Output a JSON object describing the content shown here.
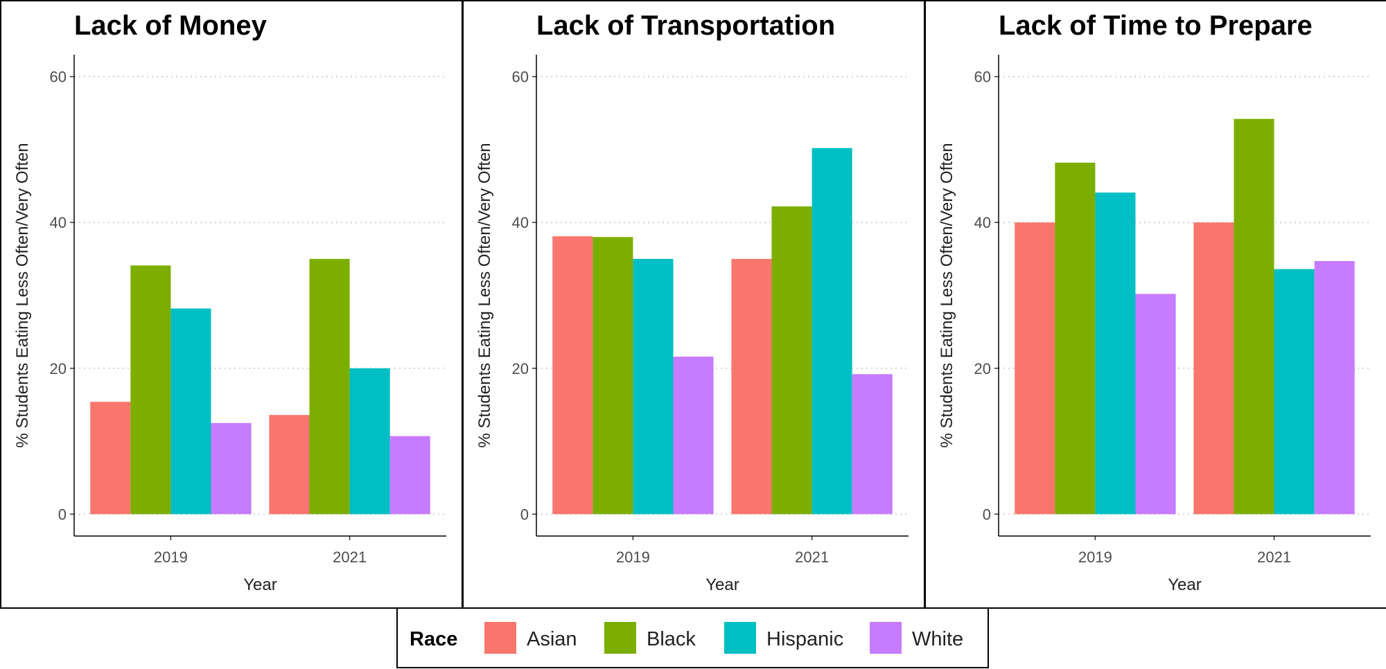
{
  "chart_data": [
    {
      "type": "bar",
      "title": "Lack of Money",
      "x_label": "Year",
      "y_label": "% Students Eating Less Often/Very Often",
      "categories": [
        "2019",
        "2021"
      ],
      "series": [
        {
          "name": "Asian",
          "color": "#F8766D",
          "values": [
            15.4,
            13.6
          ]
        },
        {
          "name": "Black",
          "color": "#7CAE00",
          "values": [
            34.1,
            35.0
          ]
        },
        {
          "name": "Hispanic",
          "color": "#00BFC4",
          "values": [
            28.2,
            20.0
          ]
        },
        {
          "name": "White",
          "color": "#C77CFF",
          "values": [
            12.5,
            10.7
          ]
        }
      ],
      "ylim": [
        -3,
        63
      ],
      "yticks": [
        0,
        20,
        40,
        60
      ],
      "grid": true
    },
    {
      "type": "bar",
      "title": "Lack of Transportation",
      "x_label": "Year",
      "y_label": "% Students Eating Less Often/Very Often",
      "categories": [
        "2019",
        "2021"
      ],
      "series": [
        {
          "name": "Asian",
          "color": "#F8766D",
          "values": [
            38.1,
            35.0
          ]
        },
        {
          "name": "Black",
          "color": "#7CAE00",
          "values": [
            38.0,
            42.2
          ]
        },
        {
          "name": "Hispanic",
          "color": "#00BFC4",
          "values": [
            35.0,
            50.2
          ]
        },
        {
          "name": "White",
          "color": "#C77CFF",
          "values": [
            21.6,
            19.2
          ]
        }
      ],
      "ylim": [
        -3,
        63
      ],
      "yticks": [
        0,
        20,
        40,
        60
      ],
      "grid": true
    },
    {
      "type": "bar",
      "title": "Lack of Time to Prepare",
      "x_label": "Year",
      "y_label": "% Students Eating Less Often/Very Often",
      "categories": [
        "2019",
        "2021"
      ],
      "series": [
        {
          "name": "Asian",
          "color": "#F8766D",
          "values": [
            40.0,
            40.0
          ]
        },
        {
          "name": "Black",
          "color": "#7CAE00",
          "values": [
            48.2,
            54.2
          ]
        },
        {
          "name": "Hispanic",
          "color": "#00BFC4",
          "values": [
            44.1,
            33.6
          ]
        },
        {
          "name": "White",
          "color": "#C77CFF",
          "values": [
            30.2,
            34.7
          ]
        }
      ],
      "ylim": [
        -3,
        63
      ],
      "yticks": [
        0,
        20,
        40,
        60
      ],
      "grid": true
    }
  ],
  "legend": {
    "title": "Race"
  }
}
